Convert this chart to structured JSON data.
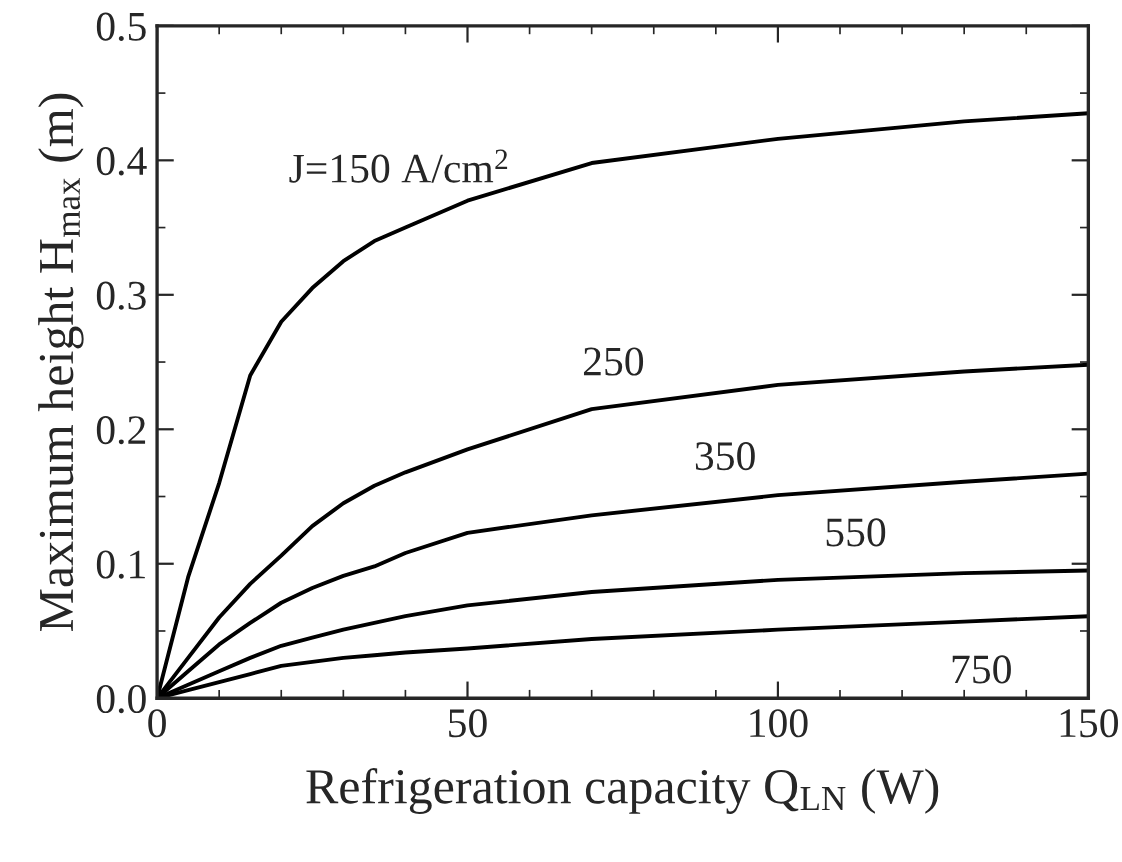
{
  "chart_data": {
    "type": "line",
    "xlabel": "Refrigeration capacity Q$_{LN}$ (W)",
    "ylabel": "Maximum height H$_{max}$ (m)",
    "x": [
      0,
      5,
      10,
      15,
      20,
      25,
      30,
      35,
      40,
      50,
      70,
      100,
      130,
      150
    ],
    "series": [
      {
        "name": "J=150 A/cm$^{2}$",
        "color": "#000000",
        "values": [
          0,
          0.09,
          0.16,
          0.24,
          0.28,
          0.305,
          0.325,
          0.34,
          0.35,
          0.37,
          0.398,
          0.416,
          0.429,
          0.435
        ]
      },
      {
        "name": "250",
        "color": "#000000",
        "values": [
          0,
          0.03,
          0.06,
          0.085,
          0.106,
          0.128,
          0.145,
          0.158,
          0.168,
          0.185,
          0.215,
          0.233,
          0.243,
          0.248
        ]
      },
      {
        "name": "350",
        "color": "#000000",
        "values": [
          0,
          0.02,
          0.04,
          0.056,
          0.071,
          0.082,
          0.091,
          0.098,
          0.108,
          0.123,
          0.136,
          0.151,
          0.161,
          0.167
        ]
      },
      {
        "name": "550",
        "color": "#000000",
        "values": [
          0,
          0.01,
          0.02,
          0.03,
          0.039,
          0.045,
          0.051,
          0.056,
          0.061,
          0.069,
          0.079,
          0.088,
          0.093,
          0.095
        ]
      },
      {
        "name": "750",
        "color": "#000000",
        "values": [
          0,
          0.006,
          0.012,
          0.018,
          0.024,
          0.027,
          0.03,
          0.032,
          0.034,
          0.037,
          0.044,
          0.051,
          0.057,
          0.061
        ]
      }
    ],
    "xlim": [
      0,
      150
    ],
    "xticks": [
      0,
      50,
      100,
      150
    ],
    "ylim": [
      0,
      0.5
    ],
    "yticks": [
      {
        "value": 0,
        "label": "0.0"
      },
      0.1,
      0.2,
      0.3,
      0.4,
      0.5
    ],
    "grid": false,
    "legend": false,
    "marker": "none",
    "line_style": "solid"
  }
}
